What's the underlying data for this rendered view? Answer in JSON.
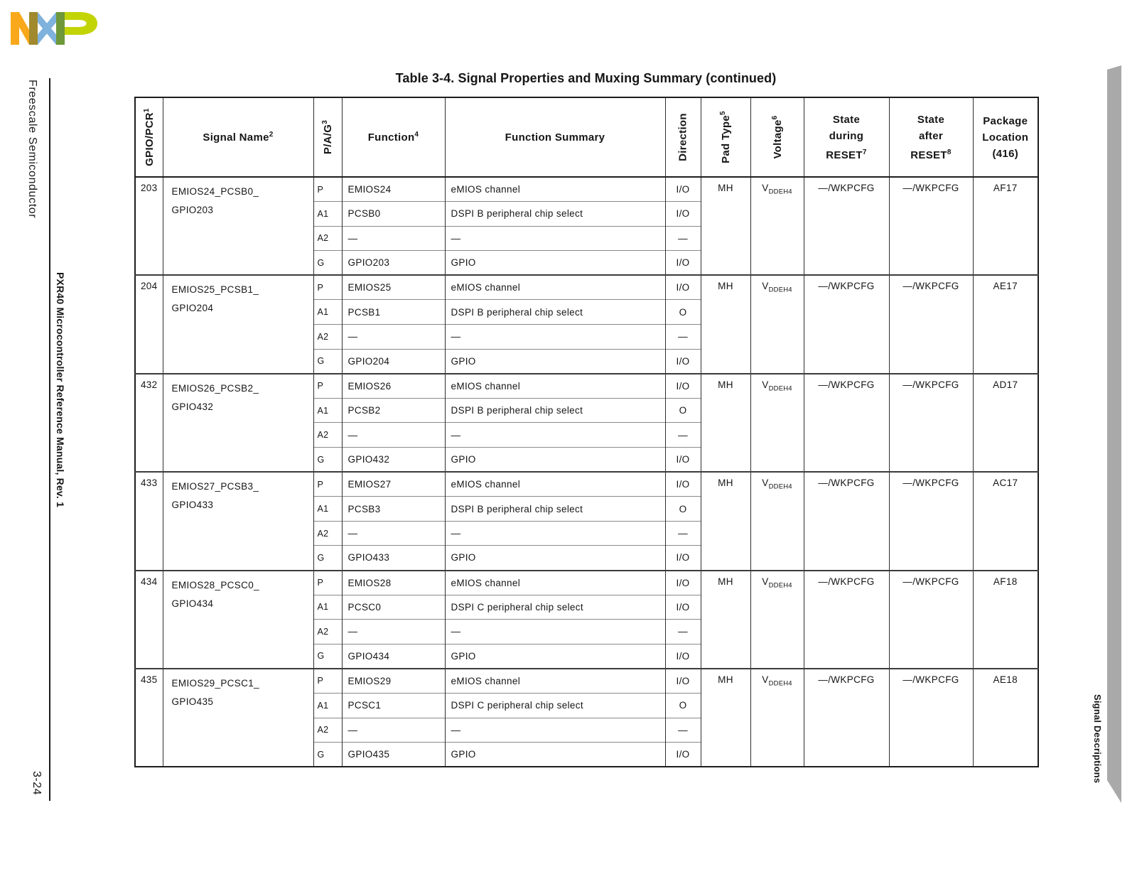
{
  "page": {
    "title": "Table 3-4. Signal Properties and Muxing Summary (continued)",
    "left_margin": {
      "publisher": "Freescale Semiconductor",
      "manual": "PXR40 Microcontroller Reference Manual, Rev. 1",
      "page_number": "3-24"
    },
    "right_margin": {
      "chapter": "Signal Descriptions"
    },
    "brand": "NXP",
    "colors": {
      "logo_orange": "#F9A81B",
      "logo_olive": "#A1892D",
      "logo_blue": "#7FB2DC",
      "logo_dark_green": "#6E9839",
      "logo_green": "#C3D405",
      "tab_gray": "#A9A9A9"
    }
  },
  "table": {
    "headers": {
      "gpio_pcr": {
        "label": "GPIO/PCR",
        "sup": "1"
      },
      "signal_name": {
        "label": "Signal Name",
        "sup": "2"
      },
      "pag": {
        "label": "P/A/G",
        "sup": "3"
      },
      "function": {
        "label": "Function",
        "sup": "4"
      },
      "function_summary": {
        "label": "Function Summary"
      },
      "direction": {
        "label": "Direction"
      },
      "pad_type": {
        "label": "Pad Type",
        "sup": "5"
      },
      "voltage": {
        "label": "Voltage",
        "sup": "6"
      },
      "state_during": {
        "line1": "State",
        "line2": "during",
        "line3": "RESET",
        "sup": "7"
      },
      "state_after": {
        "line1": "State",
        "line2": "after",
        "line3": "RESET",
        "sup": "8"
      },
      "package": {
        "line1": "Package",
        "line2": "Location",
        "line3": "(416)"
      }
    },
    "rows": [
      {
        "pcr": "203",
        "signal_lines": [
          "EMIOS24_PCSB0_",
          "GPIO203"
        ],
        "pad_type": "MH",
        "voltage": {
          "base": "V",
          "sub": "DDEH4"
        },
        "state_during_reset": "—/WKPCFG",
        "state_after_reset": "—/WKPCFG",
        "package_location": "AF17",
        "functions": [
          {
            "pag": "P",
            "function": "EMIOS24",
            "summary": "eMIOS channel",
            "direction": "I/O"
          },
          {
            "pag": "A1",
            "function": "PCSB0",
            "summary": "DSPI B peripheral chip select",
            "direction": "I/O"
          },
          {
            "pag": "A2",
            "function": "—",
            "summary": "—",
            "direction": "—"
          },
          {
            "pag": "G",
            "function": "GPIO203",
            "summary": "GPIO",
            "direction": "I/O"
          }
        ]
      },
      {
        "pcr": "204",
        "signal_lines": [
          "EMIOS25_PCSB1_",
          "GPIO204"
        ],
        "pad_type": "MH",
        "voltage": {
          "base": "V",
          "sub": "DDEH4"
        },
        "state_during_reset": "—/WKPCFG",
        "state_after_reset": "—/WKPCFG",
        "package_location": "AE17",
        "functions": [
          {
            "pag": "P",
            "function": "EMIOS25",
            "summary": "eMIOS channel",
            "direction": "I/O"
          },
          {
            "pag": "A1",
            "function": "PCSB1",
            "summary": "DSPI B peripheral chip select",
            "direction": "O"
          },
          {
            "pag": "A2",
            "function": "—",
            "summary": "—",
            "direction": "—"
          },
          {
            "pag": "G",
            "function": "GPIO204",
            "summary": "GPIO",
            "direction": "I/O"
          }
        ]
      },
      {
        "pcr": "432",
        "signal_lines": [
          "EMIOS26_PCSB2_",
          "GPIO432"
        ],
        "pad_type": "MH",
        "voltage": {
          "base": "V",
          "sub": "DDEH4"
        },
        "state_during_reset": "—/WKPCFG",
        "state_after_reset": "—/WKPCFG",
        "package_location": "AD17",
        "functions": [
          {
            "pag": "P",
            "function": "EMIOS26",
            "summary": "eMIOS channel",
            "direction": "I/O"
          },
          {
            "pag": "A1",
            "function": "PCSB2",
            "summary": "DSPI B peripheral chip select",
            "direction": "O"
          },
          {
            "pag": "A2",
            "function": "—",
            "summary": "—",
            "direction": "—"
          },
          {
            "pag": "G",
            "function": "GPIO432",
            "summary": "GPIO",
            "direction": "I/O"
          }
        ]
      },
      {
        "pcr": "433",
        "signal_lines": [
          "EMIOS27_PCSB3_",
          "GPIO433"
        ],
        "pad_type": "MH",
        "voltage": {
          "base": "V",
          "sub": "DDEH4"
        },
        "state_during_reset": "—/WKPCFG",
        "state_after_reset": "—/WKPCFG",
        "package_location": "AC17",
        "functions": [
          {
            "pag": "P",
            "function": "EMIOS27",
            "summary": "eMIOS channel",
            "direction": "I/O"
          },
          {
            "pag": "A1",
            "function": "PCSB3",
            "summary": "DSPI B peripheral chip select",
            "direction": "O"
          },
          {
            "pag": "A2",
            "function": "—",
            "summary": "—",
            "direction": "—"
          },
          {
            "pag": "G",
            "function": "GPIO433",
            "summary": "GPIO",
            "direction": "I/O"
          }
        ]
      },
      {
        "pcr": "434",
        "signal_lines": [
          "EMIOS28_PCSC0_",
          "GPIO434"
        ],
        "pad_type": "MH",
        "voltage": {
          "base": "V",
          "sub": "DDEH4"
        },
        "state_during_reset": "—/WKPCFG",
        "state_after_reset": "—/WKPCFG",
        "package_location": "AF18",
        "functions": [
          {
            "pag": "P",
            "function": "EMIOS28",
            "summary": "eMIOS channel",
            "direction": "I/O"
          },
          {
            "pag": "A1",
            "function": "PCSC0",
            "summary": "DSPI C peripheral chip select",
            "direction": "I/O"
          },
          {
            "pag": "A2",
            "function": "—",
            "summary": "—",
            "direction": "—"
          },
          {
            "pag": "G",
            "function": "GPIO434",
            "summary": "GPIO",
            "direction": "I/O"
          }
        ]
      },
      {
        "pcr": "435",
        "signal_lines": [
          "EMIOS29_PCSC1_",
          "GPIO435"
        ],
        "pad_type": "MH",
        "voltage": {
          "base": "V",
          "sub": "DDEH4"
        },
        "state_during_reset": "—/WKPCFG",
        "state_after_reset": "—/WKPCFG",
        "package_location": "AE18",
        "functions": [
          {
            "pag": "P",
            "function": "EMIOS29",
            "summary": "eMIOS channel",
            "direction": "I/O"
          },
          {
            "pag": "A1",
            "function": "PCSC1",
            "summary": "DSPI C peripheral chip select",
            "direction": "O"
          },
          {
            "pag": "A2",
            "function": "—",
            "summary": "—",
            "direction": "—"
          },
          {
            "pag": "G",
            "function": "GPIO435",
            "summary": "GPIO",
            "direction": "I/O"
          }
        ]
      }
    ]
  }
}
